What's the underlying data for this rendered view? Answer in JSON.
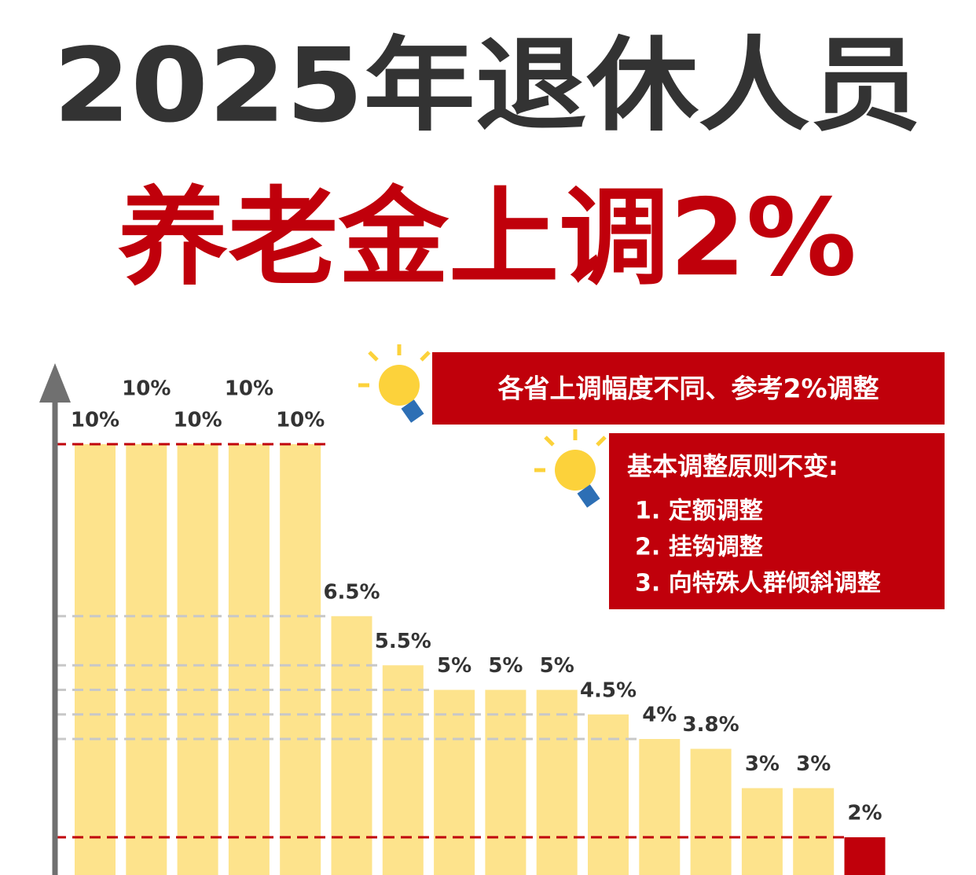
{
  "chart_data": {
    "type": "bar",
    "title": "2025年退休人员",
    "subtitle": "养老金上调2%",
    "annotations": [
      "各省上调幅度不同、参考2%调整",
      "基本调整原则不变:",
      "1. 定额调整",
      "2. 挂钩调整",
      "3. 向特殊人群倾斜调整"
    ],
    "values": [
      10,
      10,
      10,
      10,
      10,
      6.5,
      5.5,
      5,
      5,
      5,
      4.5,
      4,
      3.8,
      3,
      3,
      2
    ],
    "value_labels": [
      "10%",
      "10%",
      "10%",
      "10%",
      "10%",
      "6.5%",
      "5.5%",
      "5%",
      "5%",
      "5%",
      "4.5%",
      "4%",
      "3.8%",
      "3%",
      "3%",
      "2%"
    ],
    "colors": [
      "#fde38c",
      "#fde38c",
      "#fde38c",
      "#fde38c",
      "#fde38c",
      "#fde38c",
      "#fde38c",
      "#fde38c",
      "#fde38c",
      "#fde38c",
      "#fde38c",
      "#fde38c",
      "#fde38c",
      "#fde38c",
      "#fde38c",
      "#c0000b"
    ],
    "ylim": [
      0,
      10
    ],
    "reference_lines": [
      {
        "value": 10,
        "color": "#c0000b"
      },
      {
        "value": 6.5,
        "color": "#c8c8c8"
      },
      {
        "value": 5.5,
        "color": "#c8c8c8"
      },
      {
        "value": 5,
        "color": "#c8c8c8"
      },
      {
        "value": 4.5,
        "color": "#c8c8c8"
      },
      {
        "value": 4,
        "color": "#c8c8c8"
      },
      {
        "value": 2,
        "color": "#c0000b"
      }
    ]
  }
}
